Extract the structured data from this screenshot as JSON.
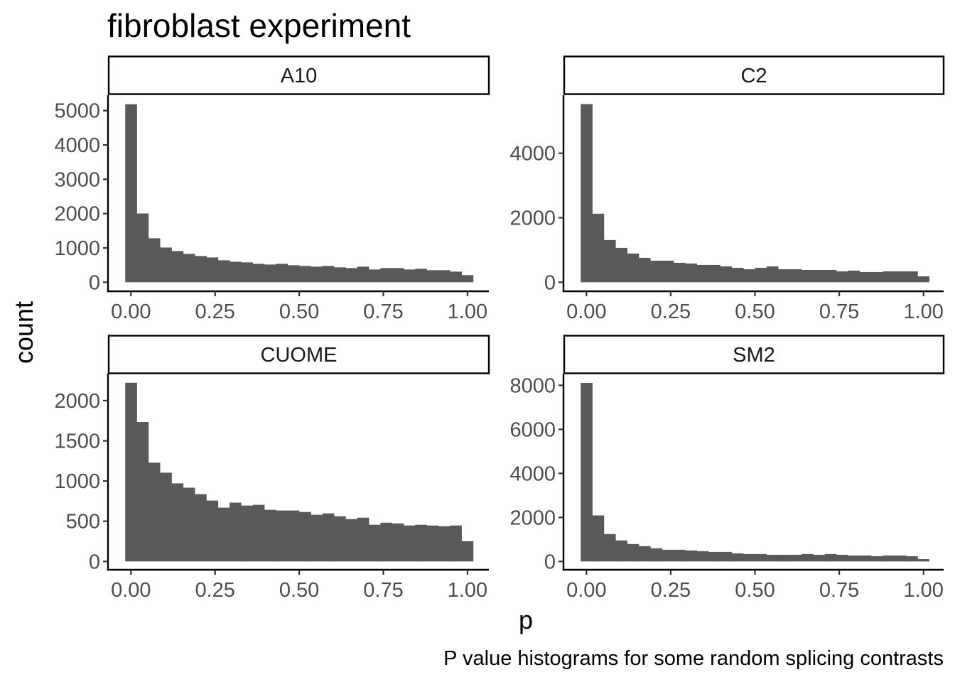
{
  "chart_data": {
    "type": "bar",
    "subtype": "histogram-facets",
    "title": "fibroblast experiment",
    "xlabel": "p",
    "ylabel": "count",
    "caption": "P value histograms for some random splicing contrasts",
    "bins": 30,
    "xlim": [
      -0.017,
      1.017
    ],
    "x_ticks": [
      "0.00",
      "0.25",
      "0.50",
      "0.75",
      "1.00"
    ],
    "x_tick_values": [
      0,
      0.25,
      0.5,
      0.75,
      1
    ],
    "bar_color": "#595959",
    "grid": false,
    "facets": [
      {
        "name": "A10",
        "y_ticks": [
          "0",
          "1000",
          "2000",
          "3000",
          "4000",
          "5000"
        ],
        "y_tick_values": [
          0,
          1000,
          2000,
          3000,
          4000,
          5000
        ],
        "ylim": [
          0,
          5450
        ],
        "values": [
          5186,
          2004,
          1281,
          1012,
          909,
          826,
          764,
          723,
          640,
          599,
          578,
          537,
          516,
          537,
          496,
          475,
          455,
          475,
          434,
          413,
          455,
          372,
          413,
          413,
          372,
          393,
          351,
          351,
          310,
          207
        ]
      },
      {
        "name": "C2",
        "y_ticks": [
          "0",
          "2000",
          "4000"
        ],
        "y_tick_values": [
          0,
          2000,
          4000
        ],
        "ylim": [
          0,
          5800
        ],
        "values": [
          5523,
          2125,
          1309,
          1066,
          890,
          757,
          669,
          669,
          603,
          581,
          537,
          537,
          492,
          448,
          404,
          448,
          492,
          404,
          404,
          382,
          382,
          382,
          338,
          360,
          316,
          316,
          338,
          338,
          338,
          183
        ]
      },
      {
        "name": "CUOME",
        "y_ticks": [
          "0",
          "500",
          "1000",
          "1500",
          "2000"
        ],
        "y_tick_values": [
          0,
          500,
          1000,
          1500,
          2000
        ],
        "ylim": [
          0,
          2335
        ],
        "values": [
          2222,
          1734,
          1228,
          1104,
          971,
          917,
          837,
          757,
          669,
          731,
          695,
          704,
          642,
          633,
          633,
          615,
          580,
          598,
          562,
          527,
          544,
          456,
          482,
          473,
          447,
          456,
          447,
          438,
          447,
          252
        ]
      },
      {
        "name": "SM2",
        "y_ticks": [
          "0",
          "2000",
          "4000",
          "6000",
          "8000"
        ],
        "y_tick_values": [
          0,
          2000,
          4000,
          6000,
          8000
        ],
        "ylim": [
          0,
          8530
        ],
        "values": [
          8108,
          2090,
          1245,
          953,
          790,
          693,
          596,
          531,
          531,
          498,
          466,
          433,
          433,
          368,
          336,
          336,
          303,
          303,
          303,
          336,
          303,
          336,
          303,
          271,
          271,
          238,
          271,
          271,
          238,
          108
        ]
      }
    ]
  }
}
